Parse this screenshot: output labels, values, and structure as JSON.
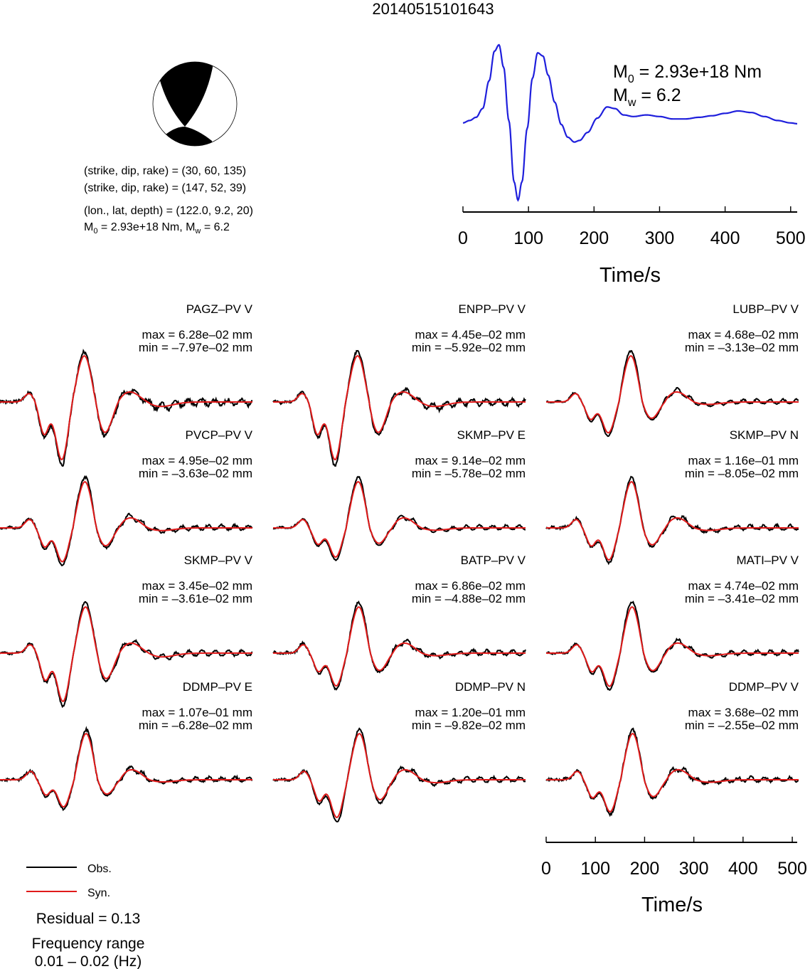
{
  "chart_data": {
    "type": "line",
    "title": "20140515101643",
    "beachball": {
      "planes": [
        "(strike, dip, rake) = (30, 60, 135)",
        "(strike, dip, rake) = (147, 52, 39)"
      ],
      "location": "(lon., lat, depth) = (122.0, 9.2, 20)",
      "moment_prefix": "M",
      "moment_sub": "0",
      "moment_value": " = 2.93e+18 Nm, ",
      "mw_prefix": "M",
      "mw_sub": "w",
      "mw_value": " = 6.2"
    },
    "stf": {
      "moment_prefix": "M",
      "moment_sub": "0",
      "moment_value": " = 2.93e+18 Nm",
      "mw_prefix": "M",
      "mw_sub": "w",
      "mw_value": " = 6.2",
      "xlabel": "Time/s",
      "xlim": [
        0,
        510
      ],
      "xticks": [
        0,
        100,
        200,
        300,
        400,
        500
      ],
      "color": "#1f1fdc",
      "samples": {
        "t": [
          0,
          10,
          20,
          30,
          40,
          48,
          55,
          62,
          70,
          78,
          84,
          90,
          98,
          106,
          114,
          122,
          130,
          140,
          150,
          160,
          170,
          178,
          190,
          205,
          220,
          232,
          245,
          260,
          280,
          300,
          320,
          340,
          360,
          380,
          400,
          420,
          440,
          460,
          480,
          500,
          510
        ],
        "y": [
          0.02,
          0.05,
          0.09,
          0.2,
          0.55,
          0.92,
          1.0,
          0.72,
          0.05,
          -0.72,
          -0.95,
          -0.72,
          -0.05,
          0.58,
          0.9,
          0.86,
          0.62,
          0.28,
          0.0,
          -0.16,
          -0.22,
          -0.2,
          -0.1,
          0.08,
          0.22,
          0.2,
          0.12,
          0.1,
          0.12,
          0.1,
          0.07,
          0.07,
          0.09,
          0.11,
          0.14,
          0.17,
          0.15,
          0.1,
          0.05,
          0.02,
          0.01
        ]
      }
    },
    "waveform_axis": {
      "xlabel": "Time/s",
      "xlim": [
        0,
        510
      ],
      "xticks": [
        0,
        100,
        200,
        300,
        400,
        500
      ]
    },
    "legend": {
      "obs_label": "Obs.",
      "syn_label": "Syn.",
      "obs_color": "#000000",
      "syn_color": "#e01a1a"
    },
    "residual": "Residual = 0.13",
    "frequency_label": "Frequency range",
    "frequency_value": "0.01 – 0.02 (Hz)",
    "panels": [
      {
        "station": "PAGZ–PV V",
        "max": "max = 6.28e–02 mm",
        "min": "min = –7.97e–02 mm",
        "obs_max": 0.0628,
        "obs_min": -0.0797
      },
      {
        "station": "ENPP–PV V",
        "max": "max = 4.45e–02 mm",
        "min": "min = –5.92e–02 mm",
        "obs_max": 0.0445,
        "obs_min": -0.0592
      },
      {
        "station": "LUBP–PV V",
        "max": "max = 4.68e–02 mm",
        "min": "min = –3.13e–02 mm",
        "obs_max": 0.0468,
        "obs_min": -0.0313
      },
      {
        "station": "PVCP–PV V",
        "max": "max = 4.95e–02 mm",
        "min": "min = –3.63e–02 mm",
        "obs_max": 0.0495,
        "obs_min": -0.0363
      },
      {
        "station": "SKMP–PV E",
        "max": "max = 9.14e–02 mm",
        "min": "min = –5.78e–02 mm",
        "obs_max": 0.0914,
        "obs_min": -0.0578
      },
      {
        "station": "SKMP–PV N",
        "max": "max = 1.16e–01 mm",
        "min": "min = –8.05e–02 mm",
        "obs_max": 0.116,
        "obs_min": -0.0805
      },
      {
        "station": "SKMP–PV V",
        "max": "max = 3.45e–02 mm",
        "min": "min = –3.61e–02 mm",
        "obs_max": 0.0345,
        "obs_min": -0.0361
      },
      {
        "station": "BATP–PV V",
        "max": "max = 6.86e–02 mm",
        "min": "min = –4.88e–02 mm",
        "obs_max": 0.0686,
        "obs_min": -0.0488
      },
      {
        "station": "MATI–PV V",
        "max": "max = 4.74e–02 mm",
        "min": "min = –3.41e–02 mm",
        "obs_max": 0.0474,
        "obs_min": -0.0341
      },
      {
        "station": "DDMP–PV E",
        "max": "max = 1.07e–01 mm",
        "min": "min = –6.28e–02 mm",
        "obs_max": 0.107,
        "obs_min": -0.0628
      },
      {
        "station": "DDMP–PV N",
        "max": "max = 1.20e–01 mm",
        "min": "min = –9.82e–02 mm",
        "obs_max": 0.12,
        "obs_min": -0.0982
      },
      {
        "station": "DDMP–PV V",
        "max": "max = 3.68e–02 mm",
        "min": "min = –2.55e–02 mm",
        "obs_max": 0.0368,
        "obs_min": -0.0255
      }
    ]
  }
}
